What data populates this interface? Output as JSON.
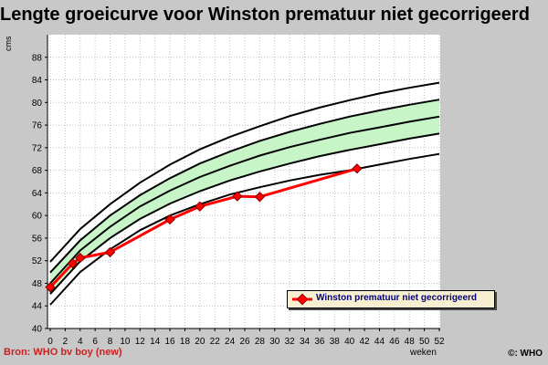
{
  "title": "Lengte groeicurve voor Winston prematuur niet gecorrigeerd",
  "source": "Bron: WHO bv boy (new)",
  "copyright": "©: WHO",
  "colors": {
    "band_fill": "#c8f5c8",
    "patient_line": "#ff0000",
    "patient_marker_border": "#800000",
    "legend_text": "#000080"
  },
  "chart_data": {
    "type": "line",
    "title": "Lengte groeicurve voor Winston prematuur niet gecorrigeerd",
    "xlabel": "weken",
    "ylabel": "cms",
    "xlim": [
      0,
      52
    ],
    "ylim": [
      40,
      92
    ],
    "x_ticks": [
      0,
      2,
      4,
      6,
      8,
      10,
      12,
      14,
      16,
      18,
      20,
      22,
      24,
      26,
      28,
      30,
      32,
      34,
      36,
      38,
      40,
      42,
      44,
      46,
      48,
      50,
      52
    ],
    "y_ticks": [
      40,
      44,
      48,
      52,
      56,
      60,
      64,
      68,
      72,
      76,
      80,
      84,
      88
    ],
    "grid": true,
    "legend_placement": "bottom-right",
    "reference_x": [
      0,
      4,
      8,
      12,
      16,
      20,
      24,
      28,
      32,
      36,
      40,
      44,
      48,
      52
    ],
    "reference_curves": [
      {
        "values": [
          44.2,
          50.0,
          54.0,
          57.4,
          60.0,
          62.0,
          63.7,
          65.0,
          66.2,
          67.2,
          68.0,
          69.0,
          70.0,
          70.9
        ]
      },
      {
        "values": [
          46.1,
          51.9,
          56.0,
          59.4,
          62.1,
          64.3,
          66.2,
          67.8,
          69.2,
          70.5,
          71.6,
          72.6,
          73.6,
          74.5
        ]
      },
      {
        "values": [
          48.0,
          53.8,
          58.0,
          61.6,
          64.4,
          66.8,
          68.8,
          70.6,
          72.1,
          73.4,
          74.6,
          75.6,
          76.6,
          77.5
        ]
      },
      {
        "values": [
          49.9,
          55.6,
          60.0,
          63.6,
          66.6,
          69.2,
          71.3,
          73.2,
          74.8,
          76.2,
          77.5,
          78.6,
          79.6,
          80.5
        ]
      },
      {
        "values": [
          51.8,
          57.6,
          62.0,
          65.8,
          69.0,
          71.7,
          73.9,
          75.8,
          77.6,
          79.1,
          80.4,
          81.6,
          82.6,
          83.5
        ]
      }
    ],
    "series": [
      {
        "name": "Winston prematuur niet gecorrigeerd",
        "x": [
          0,
          3,
          4,
          8,
          16,
          20,
          25,
          28,
          41
        ],
        "values": [
          47.3,
          51.5,
          52.5,
          53.5,
          59.3,
          61.6,
          63.4,
          63.3,
          68.3
        ]
      }
    ]
  }
}
